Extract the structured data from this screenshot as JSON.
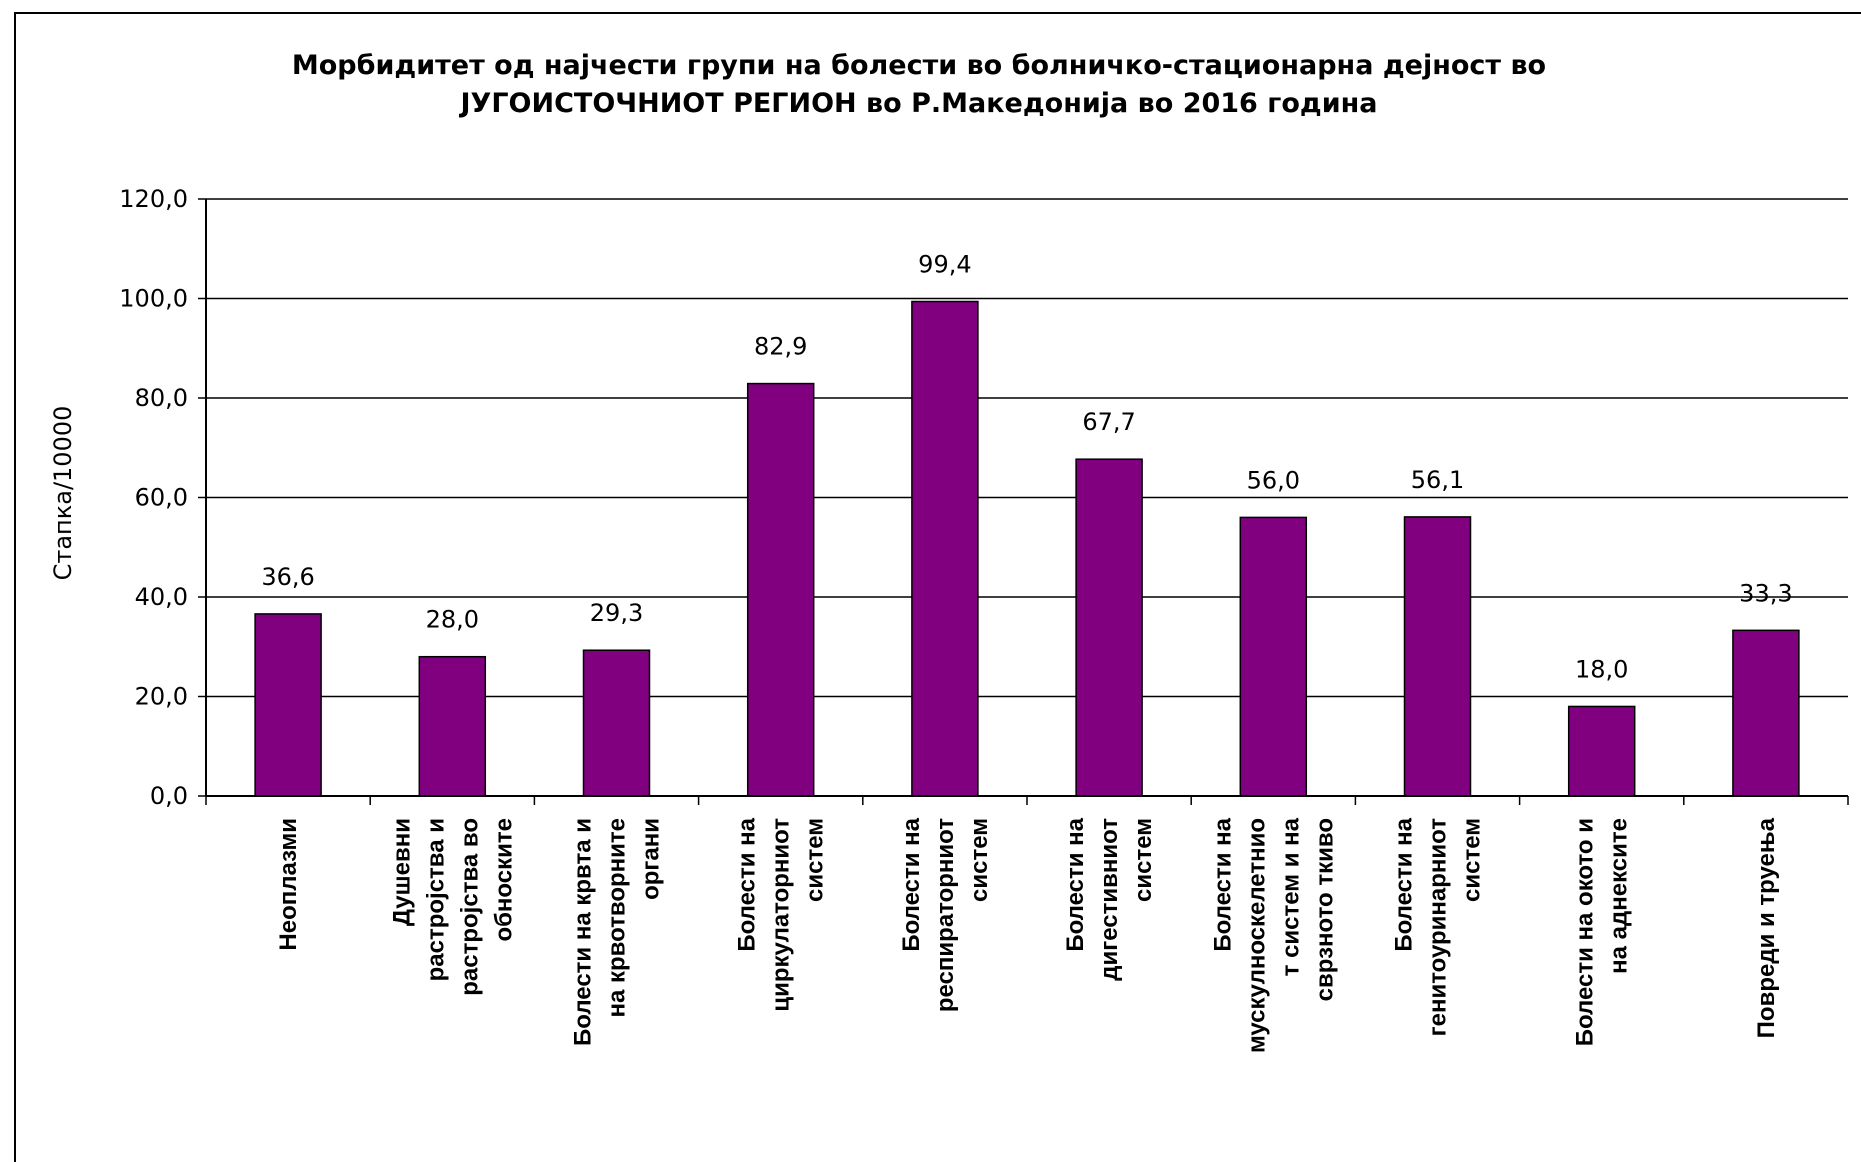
{
  "chart_data": {
    "type": "bar",
    "title": [
      "Морбидитет од најчести групи на болести во болничко-стационарна дејност во",
      "ЈУГОИСТОЧНИОТ РЕГИОН во Р.Македонија во 2016 година"
    ],
    "ylabel": "Стапка/10000",
    "xlabel": "",
    "ylim": [
      0,
      120
    ],
    "yticks": [
      "0,0",
      "20,0",
      "40,0",
      "60,0",
      "80,0",
      "100,0",
      "120,0"
    ],
    "grid": true,
    "bar_color": "#800080",
    "categories": [
      [
        "Неоплазми"
      ],
      [
        "Душевни",
        "растројства и",
        "растројства во",
        "обноските"
      ],
      [
        "Болести на крвта и",
        "на крвотворните",
        "органи"
      ],
      [
        "Болести на",
        "циркулаторниот",
        "систем"
      ],
      [
        "Болести на",
        "респираторниот",
        "систем"
      ],
      [
        "Болести на",
        "дигестивниот",
        "систем"
      ],
      [
        "Болести на",
        "мускулноскелетнио",
        "т систем и на",
        "сврзното ткиво"
      ],
      [
        "Болести на",
        "генитоуринарниот",
        "систем"
      ],
      [
        "Болести на окото и",
        "на аднексите"
      ],
      [
        "Повреди и труења"
      ]
    ],
    "values": [
      36.6,
      28.0,
      29.3,
      82.9,
      99.4,
      67.7,
      56.0,
      56.1,
      18.0,
      33.3
    ],
    "data_labels": [
      "36,6",
      "28,0",
      "29,3",
      "82,9",
      "99,4",
      "67,7",
      "56,0",
      "56,1",
      "18,0",
      "33,3"
    ]
  }
}
